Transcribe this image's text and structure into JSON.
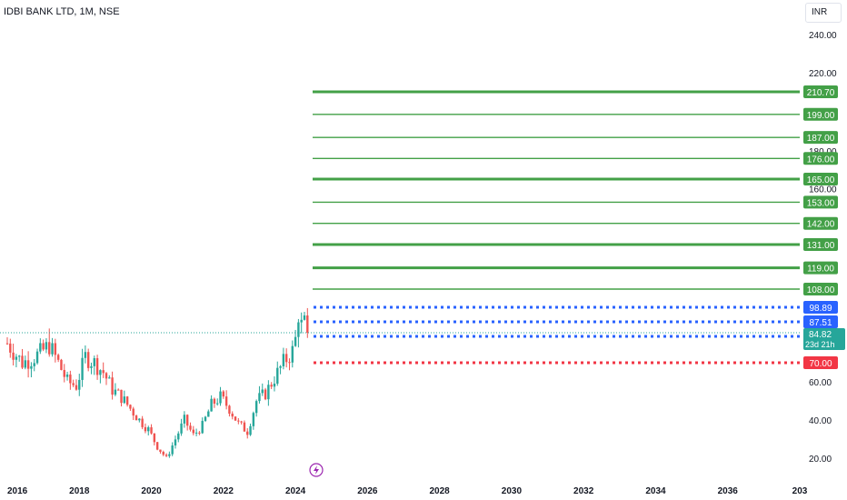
{
  "header": {
    "symbol_title": "IDBI BANK LTD, 1M, NSE",
    "currency": "INR"
  },
  "colors": {
    "up": "#26a69a",
    "down": "#ef5350",
    "level_green": "#43a047",
    "level_blue": "#2962ff",
    "level_red": "#f23645",
    "last_price_line": "#26a69a",
    "event_marker": "#9c27b0"
  },
  "event_marker_icon": "lightning-icon",
  "chart_data": {
    "type": "candlestick",
    "title": "IDBI BANK LTD, 1M, NSE",
    "ylim": [
      13,
      250
    ],
    "xlim": [
      "2016-01",
      "2038-01"
    ],
    "y_ticks": [
      "240.00",
      "220.00",
      "180.00",
      "160.00",
      "60.00",
      "40.00",
      "20.00"
    ],
    "x_ticks": [
      "2016",
      "2018",
      "2020",
      "2022",
      "2024",
      "2026",
      "2028",
      "2030",
      "2032",
      "2034",
      "2036",
      "203"
    ],
    "grid": false,
    "close_path": [
      [
        "2016-01",
        80
      ],
      [
        "2016-03",
        76
      ],
      [
        "2016-06",
        70
      ],
      [
        "2016-09",
        72
      ],
      [
        "2016-12",
        75
      ],
      [
        "2017-03",
        79
      ],
      [
        "2017-06",
        70
      ],
      [
        "2017-09",
        60
      ],
      [
        "2017-12",
        58
      ],
      [
        "2018-03",
        73
      ],
      [
        "2018-06",
        70
      ],
      [
        "2018-09",
        65
      ],
      [
        "2018-12",
        56
      ],
      [
        "2019-03",
        52
      ],
      [
        "2019-06",
        46
      ],
      [
        "2019-09",
        40
      ],
      [
        "2019-12",
        35
      ],
      [
        "2020-03",
        26
      ],
      [
        "2020-06",
        20
      ],
      [
        "2020-09",
        30
      ],
      [
        "2020-12",
        40
      ],
      [
        "2021-03",
        32
      ],
      [
        "2021-06",
        37
      ],
      [
        "2021-09",
        48
      ],
      [
        "2021-12",
        52
      ],
      [
        "2022-03",
        46
      ],
      [
        "2022-06",
        38
      ],
      [
        "2022-09",
        34
      ],
      [
        "2022-12",
        50
      ],
      [
        "2023-03",
        54
      ],
      [
        "2023-06",
        62
      ],
      [
        "2023-09",
        70
      ],
      [
        "2023-12",
        76
      ],
      [
        "2024-01",
        82
      ],
      [
        "2024-02",
        92
      ],
      [
        "2024-03",
        86
      ],
      [
        "2024-04",
        88
      ],
      [
        "2024-05",
        84.82
      ]
    ],
    "current_price": 84.82,
    "current_price_label": "84.82",
    "countdown_label": "23d 21h",
    "levels": [
      {
        "value": 210.7,
        "label": "210.70",
        "style": "solid-thick",
        "color": "green"
      },
      {
        "value": 199.0,
        "label": "199.00",
        "style": "solid",
        "color": "green"
      },
      {
        "value": 187.0,
        "label": "187.00",
        "style": "solid",
        "color": "green"
      },
      {
        "value": 176.0,
        "label": "176.00",
        "style": "solid",
        "color": "green"
      },
      {
        "value": 165.0,
        "label": "165.00",
        "style": "solid-thick",
        "color": "green"
      },
      {
        "value": 153.0,
        "label": "153.00",
        "style": "solid",
        "color": "green"
      },
      {
        "value": 142.0,
        "label": "142.00",
        "style": "solid",
        "color": "green"
      },
      {
        "value": 131.0,
        "label": "131.00",
        "style": "solid-thick",
        "color": "green"
      },
      {
        "value": 119.0,
        "label": "119.00",
        "style": "solid-thick",
        "color": "green"
      },
      {
        "value": 108.0,
        "label": "108.00",
        "style": "solid",
        "color": "green"
      },
      {
        "value": 98.89,
        "label": "98.89",
        "style": "dotted",
        "color": "blue"
      },
      {
        "value": 87.51,
        "label": "87.51",
        "style": "dotted",
        "color": "blue"
      },
      {
        "value": 83.59,
        "label": "83.59",
        "style": "dotted",
        "color": "blue"
      },
      {
        "value": 70.0,
        "label": "70.00",
        "style": "dotted",
        "color": "red"
      }
    ]
  }
}
